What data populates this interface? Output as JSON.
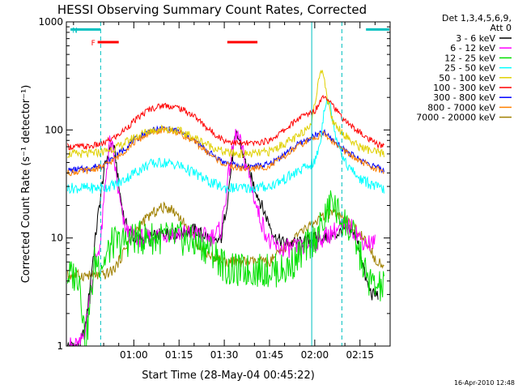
{
  "chart_data": {
    "type": "line",
    "title": "HESSI Observing Summary Count Rates, Corrected",
    "xlabel": "Start Time (28-May-04 00:45:22)",
    "ylabel": "Corrected Count Rate (s⁻¹ detector⁻¹)",
    "yscale": "log",
    "ylim": [
      1,
      1000
    ],
    "xlim_minutes": [
      -7.37,
      100.0
    ],
    "x_tick_minutes": [
      15,
      30,
      45,
      60,
      75,
      90
    ],
    "x_ticks": [
      "01:00",
      "01:15",
      "01:30",
      "01:45",
      "02:00",
      "02:15"
    ],
    "y_ticks": [
      "1",
      "10",
      "100",
      "1000"
    ],
    "legend": {
      "header": [
        "Det 1,3,4,5,6,9,",
        "Att 0"
      ],
      "placement": "right, outside plot"
    },
    "series": [
      {
        "name": "3 - 6 keV",
        "color": "#000000",
        "points": [
          [
            -7,
            1
          ],
          [
            -3,
            1
          ],
          [
            -1,
            1.5
          ],
          [
            1,
            5
          ],
          [
            3,
            15
          ],
          [
            5,
            40
          ],
          [
            7,
            70
          ],
          [
            8,
            75
          ],
          [
            9,
            55
          ],
          [
            10,
            30
          ],
          [
            12,
            14
          ],
          [
            15,
            10
          ],
          [
            20,
            10
          ],
          [
            25,
            11
          ],
          [
            30,
            11
          ],
          [
            35,
            12
          ],
          [
            40,
            10
          ],
          [
            42,
            9
          ],
          [
            44,
            10
          ],
          [
            46,
            22
          ],
          [
            48,
            65
          ],
          [
            49,
            90
          ],
          [
            50,
            80
          ],
          [
            52,
            50
          ],
          [
            55,
            30
          ],
          [
            58,
            18
          ],
          [
            62,
            10
          ],
          [
            65,
            9
          ],
          [
            70,
            9
          ],
          [
            75,
            10
          ],
          [
            80,
            10
          ],
          [
            85,
            12
          ],
          [
            88,
            11
          ],
          [
            90,
            8
          ],
          [
            92,
            4
          ],
          [
            94,
            3
          ],
          [
            96,
            3
          ]
        ]
      },
      {
        "name": "6 - 12 keV",
        "color": "#ff00ff",
        "points": [
          [
            -7,
            1
          ],
          [
            -3,
            1
          ],
          [
            -1,
            1.5
          ],
          [
            2,
            6
          ],
          [
            4,
            9
          ],
          [
            6,
            45
          ],
          [
            7,
            75
          ],
          [
            8,
            65
          ],
          [
            10,
            25
          ],
          [
            12,
            12
          ],
          [
            15,
            10
          ],
          [
            20,
            10
          ],
          [
            25,
            11
          ],
          [
            30,
            11
          ],
          [
            35,
            11
          ],
          [
            40,
            10
          ],
          [
            44,
            12
          ],
          [
            47,
            50
          ],
          [
            49,
            95
          ],
          [
            50,
            80
          ],
          [
            53,
            40
          ],
          [
            56,
            18
          ],
          [
            60,
            9
          ],
          [
            63,
            8
          ],
          [
            66,
            8
          ],
          [
            70,
            8
          ],
          [
            75,
            9
          ],
          [
            80,
            11
          ],
          [
            85,
            13
          ],
          [
            88,
            12
          ],
          [
            90,
            10
          ],
          [
            92,
            9
          ],
          [
            95,
            9
          ]
        ]
      },
      {
        "name": "12 - 25 keV",
        "color": "#00e000",
        "points": [
          [
            -7,
            4.5
          ],
          [
            -3,
            4.5
          ],
          [
            -1,
            1
          ],
          [
            2,
            6
          ],
          [
            5,
            6
          ],
          [
            8,
            9
          ],
          [
            11,
            9
          ],
          [
            15,
            10
          ],
          [
            20,
            10
          ],
          [
            25,
            10
          ],
          [
            30,
            10
          ],
          [
            35,
            9
          ],
          [
            40,
            8
          ],
          [
            42,
            7
          ],
          [
            44,
            6
          ],
          [
            46,
            5
          ],
          [
            50,
            5
          ],
          [
            55,
            5
          ],
          [
            60,
            5
          ],
          [
            65,
            5
          ],
          [
            68,
            6
          ],
          [
            72,
            8
          ],
          [
            75,
            10
          ],
          [
            78,
            14
          ],
          [
            80,
            20
          ],
          [
            81,
            23
          ],
          [
            82,
            18
          ],
          [
            85,
            14
          ],
          [
            88,
            10
          ],
          [
            90,
            7
          ],
          [
            92,
            4.5
          ],
          [
            95,
            3.5
          ],
          [
            98,
            3.5
          ]
        ]
      },
      {
        "name": "25 - 50 keV",
        "color": "#00ffff",
        "points": [
          [
            -7,
            29
          ],
          [
            0,
            29
          ],
          [
            5,
            29
          ],
          [
            10,
            32
          ],
          [
            15,
            40
          ],
          [
            20,
            48
          ],
          [
            25,
            50
          ],
          [
            30,
            47
          ],
          [
            35,
            40
          ],
          [
            40,
            33
          ],
          [
            45,
            29
          ],
          [
            50,
            29
          ],
          [
            55,
            29
          ],
          [
            60,
            30
          ],
          [
            65,
            35
          ],
          [
            70,
            42
          ],
          [
            75,
            50
          ],
          [
            77,
            80
          ],
          [
            78,
            150
          ],
          [
            79,
            200
          ],
          [
            80,
            170
          ],
          [
            82,
            90
          ],
          [
            85,
            50
          ],
          [
            88,
            40
          ],
          [
            90,
            35
          ],
          [
            93,
            32
          ],
          [
            95,
            30
          ],
          [
            98,
            28
          ]
        ]
      },
      {
        "name": "50 - 100 keV",
        "color": "#e0d000",
        "points": [
          [
            -7,
            60
          ],
          [
            0,
            60
          ],
          [
            5,
            63
          ],
          [
            10,
            70
          ],
          [
            15,
            85
          ],
          [
            20,
            98
          ],
          [
            25,
            103
          ],
          [
            30,
            98
          ],
          [
            35,
            85
          ],
          [
            40,
            72
          ],
          [
            45,
            62
          ],
          [
            50,
            60
          ],
          [
            55,
            60
          ],
          [
            60,
            63
          ],
          [
            65,
            75
          ],
          [
            70,
            88
          ],
          [
            74,
            120
          ],
          [
            76,
            250
          ],
          [
            77,
            380
          ],
          [
            78,
            330
          ],
          [
            79,
            200
          ],
          [
            81,
            120
          ],
          [
            85,
            90
          ],
          [
            88,
            75
          ],
          [
            90,
            70
          ],
          [
            93,
            65
          ],
          [
            95,
            62
          ],
          [
            98,
            60
          ]
        ]
      },
      {
        "name": "100 - 300 keV",
        "color": "#ff0000",
        "points": [
          [
            -7,
            70
          ],
          [
            0,
            70
          ],
          [
            5,
            75
          ],
          [
            10,
            90
          ],
          [
            15,
            120
          ],
          [
            20,
            155
          ],
          [
            25,
            170
          ],
          [
            30,
            160
          ],
          [
            35,
            135
          ],
          [
            40,
            100
          ],
          [
            45,
            80
          ],
          [
            50,
            75
          ],
          [
            55,
            75
          ],
          [
            60,
            80
          ],
          [
            65,
            100
          ],
          [
            70,
            130
          ],
          [
            75,
            150
          ],
          [
            77,
            190
          ],
          [
            78,
            210
          ],
          [
            80,
            190
          ],
          [
            83,
            140
          ],
          [
            86,
            115
          ],
          [
            89,
            100
          ],
          [
            92,
            85
          ],
          [
            95,
            75
          ],
          [
            98,
            70
          ]
        ]
      },
      {
        "name": "300 - 800 keV",
        "color": "#0000ff",
        "points": [
          [
            -7,
            42
          ],
          [
            0,
            44
          ],
          [
            5,
            48
          ],
          [
            10,
            60
          ],
          [
            15,
            80
          ],
          [
            20,
            97
          ],
          [
            25,
            103
          ],
          [
            30,
            97
          ],
          [
            35,
            80
          ],
          [
            40,
            62
          ],
          [
            45,
            50
          ],
          [
            50,
            46
          ],
          [
            55,
            46
          ],
          [
            60,
            48
          ],
          [
            65,
            60
          ],
          [
            70,
            75
          ],
          [
            75,
            88
          ],
          [
            78,
            95
          ],
          [
            80,
            85
          ],
          [
            83,
            72
          ],
          [
            86,
            62
          ],
          [
            89,
            55
          ],
          [
            92,
            50
          ],
          [
            95,
            46
          ],
          [
            98,
            42
          ]
        ]
      },
      {
        "name": "800 - 7000 keV",
        "color": "#ff8000",
        "points": [
          [
            -7,
            40
          ],
          [
            0,
            42
          ],
          [
            5,
            46
          ],
          [
            10,
            57
          ],
          [
            15,
            76
          ],
          [
            20,
            93
          ],
          [
            25,
            100
          ],
          [
            30,
            94
          ],
          [
            35,
            78
          ],
          [
            40,
            60
          ],
          [
            45,
            48
          ],
          [
            50,
            44
          ],
          [
            55,
            44
          ],
          [
            60,
            46
          ],
          [
            65,
            57
          ],
          [
            70,
            72
          ],
          [
            75,
            85
          ],
          [
            78,
            92
          ],
          [
            80,
            82
          ],
          [
            83,
            70
          ],
          [
            86,
            60
          ],
          [
            89,
            53
          ],
          [
            92,
            48
          ],
          [
            95,
            44
          ],
          [
            98,
            40
          ]
        ]
      },
      {
        "name": "7000 - 20000 keV",
        "color": "#a08000",
        "points": [
          [
            -7,
            4.5
          ],
          [
            0,
            4.5
          ],
          [
            5,
            4.5
          ],
          [
            8,
            5
          ],
          [
            10,
            6
          ],
          [
            13,
            9
          ],
          [
            16,
            12
          ],
          [
            20,
            16
          ],
          [
            24,
            19
          ],
          [
            27,
            19
          ],
          [
            30,
            16
          ],
          [
            33,
            12
          ],
          [
            36,
            9
          ],
          [
            40,
            7
          ],
          [
            45,
            6
          ],
          [
            50,
            6
          ],
          [
            55,
            6
          ],
          [
            60,
            6
          ],
          [
            65,
            8
          ],
          [
            70,
            11
          ],
          [
            75,
            14
          ],
          [
            80,
            17
          ],
          [
            83,
            16
          ],
          [
            86,
            14
          ],
          [
            90,
            11
          ],
          [
            93,
            8
          ],
          [
            95,
            6.5
          ],
          [
            98,
            5.5
          ]
        ]
      }
    ],
    "annotations": [
      {
        "text": "F",
        "color": "#ff0000",
        "bars_minutes": [
          [
            3,
            10
          ],
          [
            46,
            56
          ]
        ],
        "bar_value": 650
      },
      {
        "text": "N",
        "color": "#00c0c0",
        "bars_minutes": [
          [
            -6,
            4
          ],
          [
            92,
            104
          ]
        ],
        "bar_value": 850
      }
    ],
    "vertical_markers_minutes": [
      {
        "x": 4,
        "style": "dashed",
        "color": "#00c0c0"
      },
      {
        "x": 74,
        "style": "solid",
        "color": "#00c0c0"
      },
      {
        "x": 84,
        "style": "dashed",
        "color": "#00c0c0"
      }
    ]
  },
  "footer": {
    "timestamp": "16-Apr-2010 12:48"
  }
}
